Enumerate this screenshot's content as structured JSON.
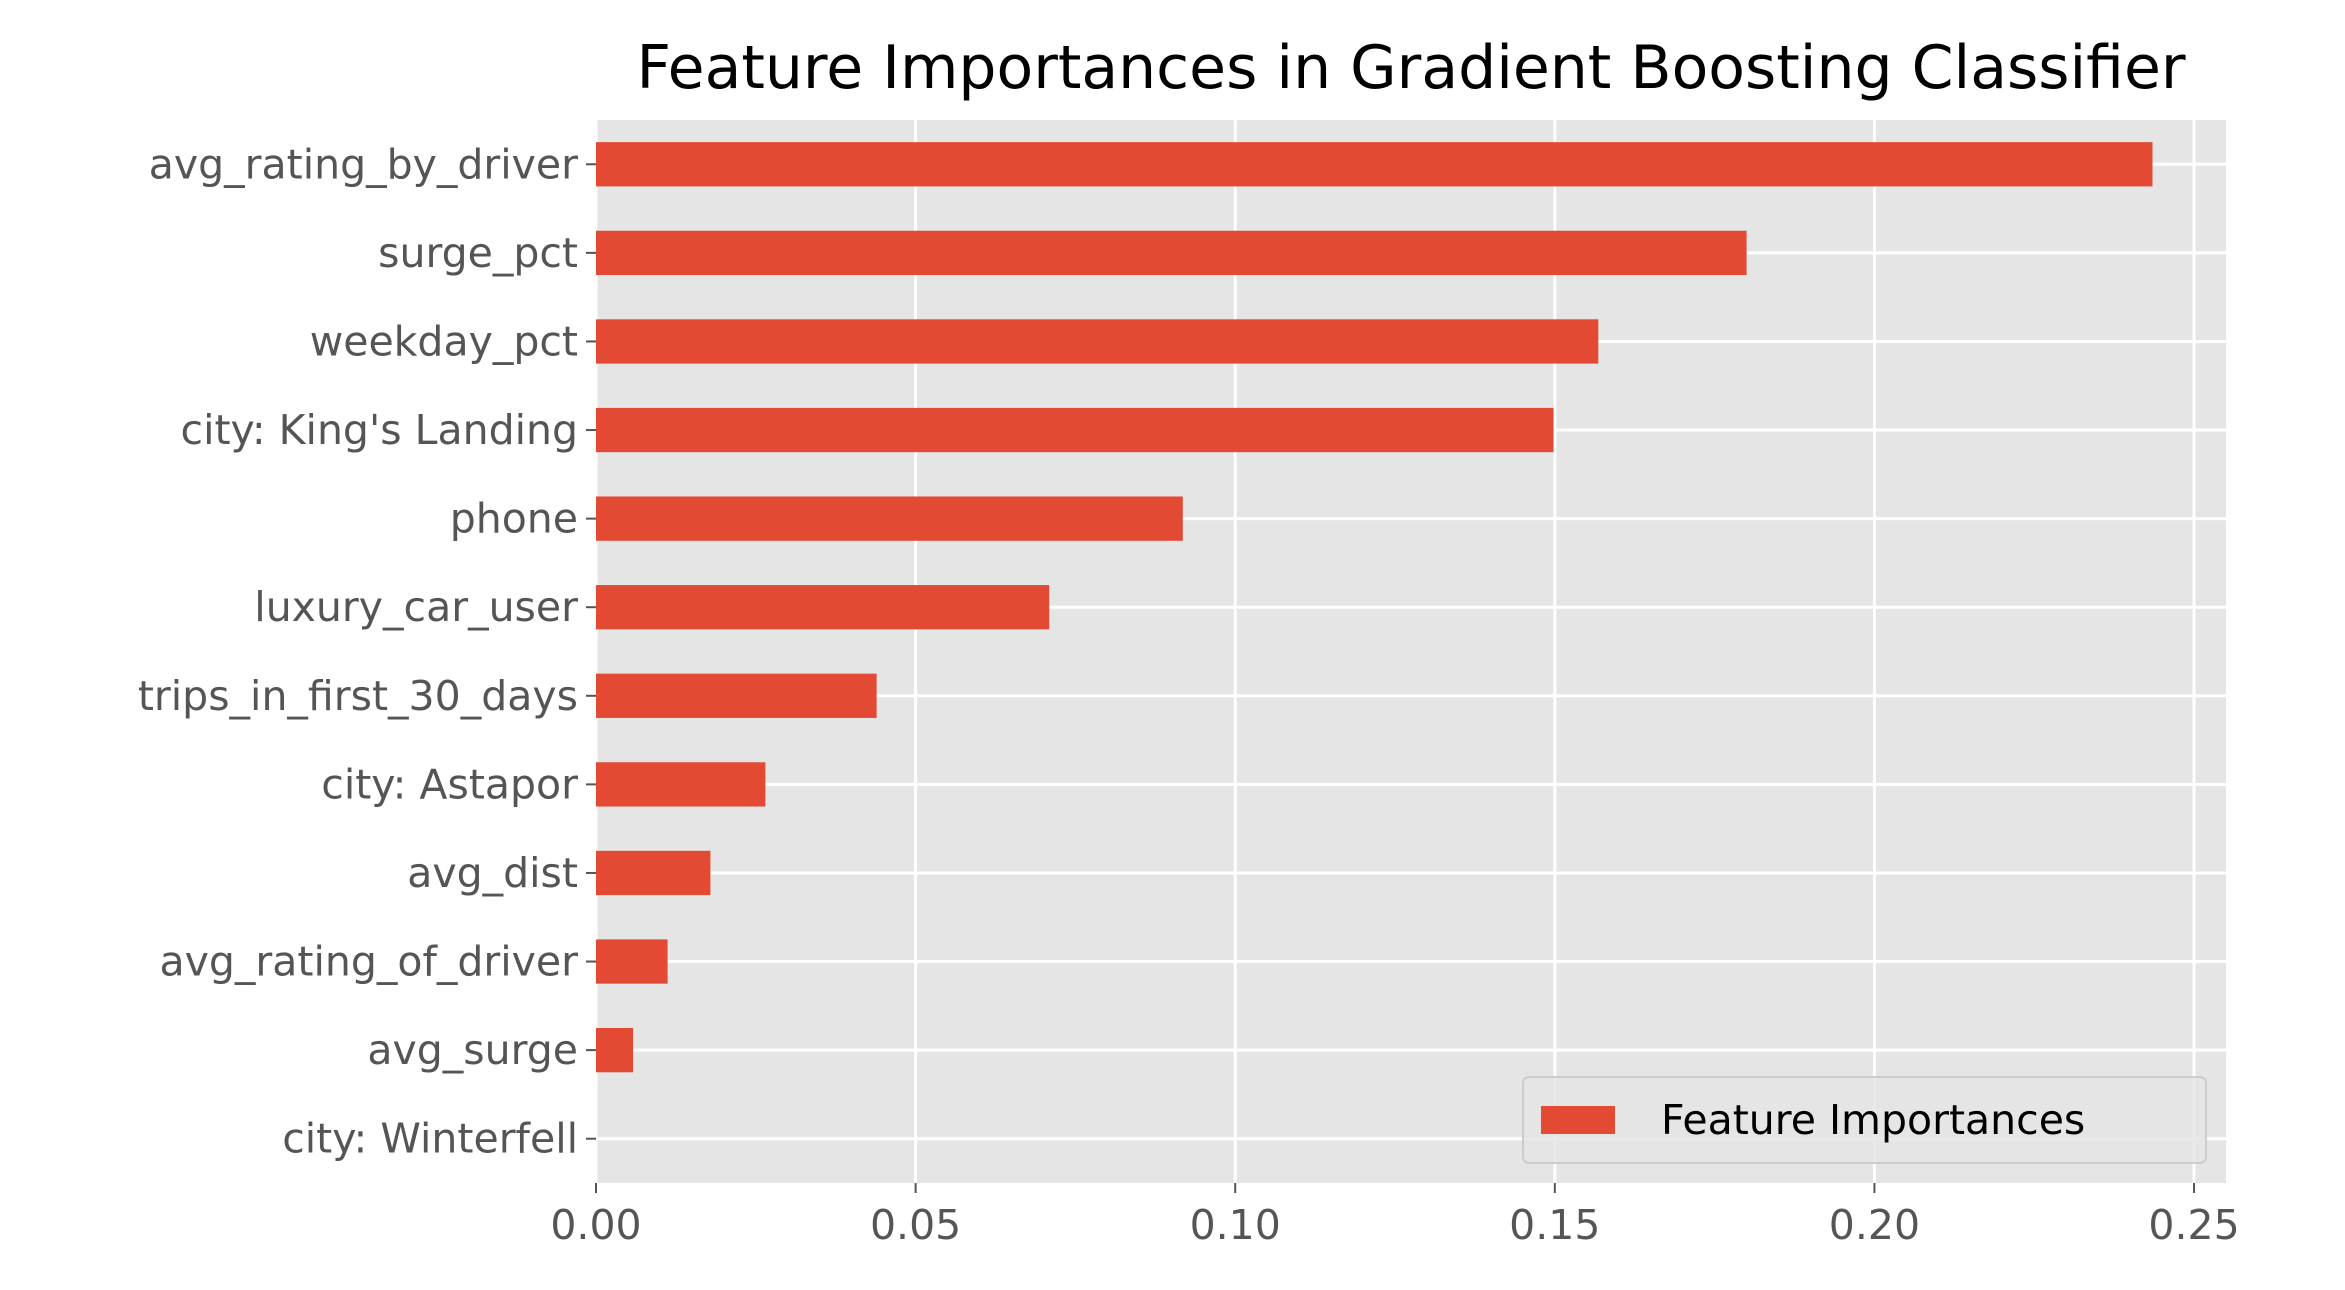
{
  "chart_data": {
    "type": "bar",
    "orientation": "horizontal",
    "title": "Feature Importances in Gradient Boosting Classifier",
    "xlabel": "",
    "ylabel": "",
    "categories": [
      "avg_rating_by_driver",
      "surge_pct",
      "weekday_pct",
      "city: King's Landing",
      "phone",
      "luxury_car_user",
      "trips_in_first_30_days",
      "city: Astapor",
      "avg_dist",
      "avg_rating_of_driver",
      "avg_surge",
      "city: Winterfell"
    ],
    "series": [
      {
        "name": "Feature Importances",
        "color": "#E24A33",
        "values": [
          0.2435,
          0.18,
          0.1568,
          0.1498,
          0.0918,
          0.0709,
          0.0439,
          0.0265,
          0.0179,
          0.0112,
          0.0058,
          0.0
        ]
      }
    ],
    "xlim": [
      0,
      0.255
    ],
    "xticks": [
      0.0,
      0.05,
      0.1,
      0.15,
      0.2,
      0.25
    ],
    "xtick_labels": [
      "0.00",
      "0.05",
      "0.10",
      "0.15",
      "0.20",
      "0.25"
    ],
    "grid": true,
    "legend_position": "lower-right",
    "style": "ggplot",
    "colors": {
      "plot_background": "#E5E5E5",
      "grid": "#FFFFFF",
      "bar": "#E24A33",
      "tick_text": "#555555",
      "title_text": "#000000"
    }
  }
}
